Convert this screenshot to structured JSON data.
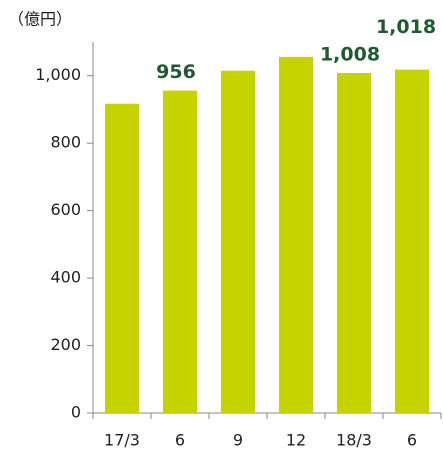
{
  "chart_data": {
    "type": "bar",
    "y_label": "（億円）",
    "categories": [
      "17/3",
      "6",
      "9",
      "12",
      "18/3",
      "6"
    ],
    "values": [
      917,
      956,
      1015,
      1056,
      1008,
      1018
    ],
    "value_labels": [
      null,
      "956",
      null,
      null,
      "1,008",
      "1,018"
    ],
    "color": "#c5d400",
    "ylim": [
      0,
      1100
    ],
    "yticks": [
      0,
      200,
      400,
      600,
      800,
      {
        "value": 1000,
        "label": "1,000"
      }
    ]
  }
}
